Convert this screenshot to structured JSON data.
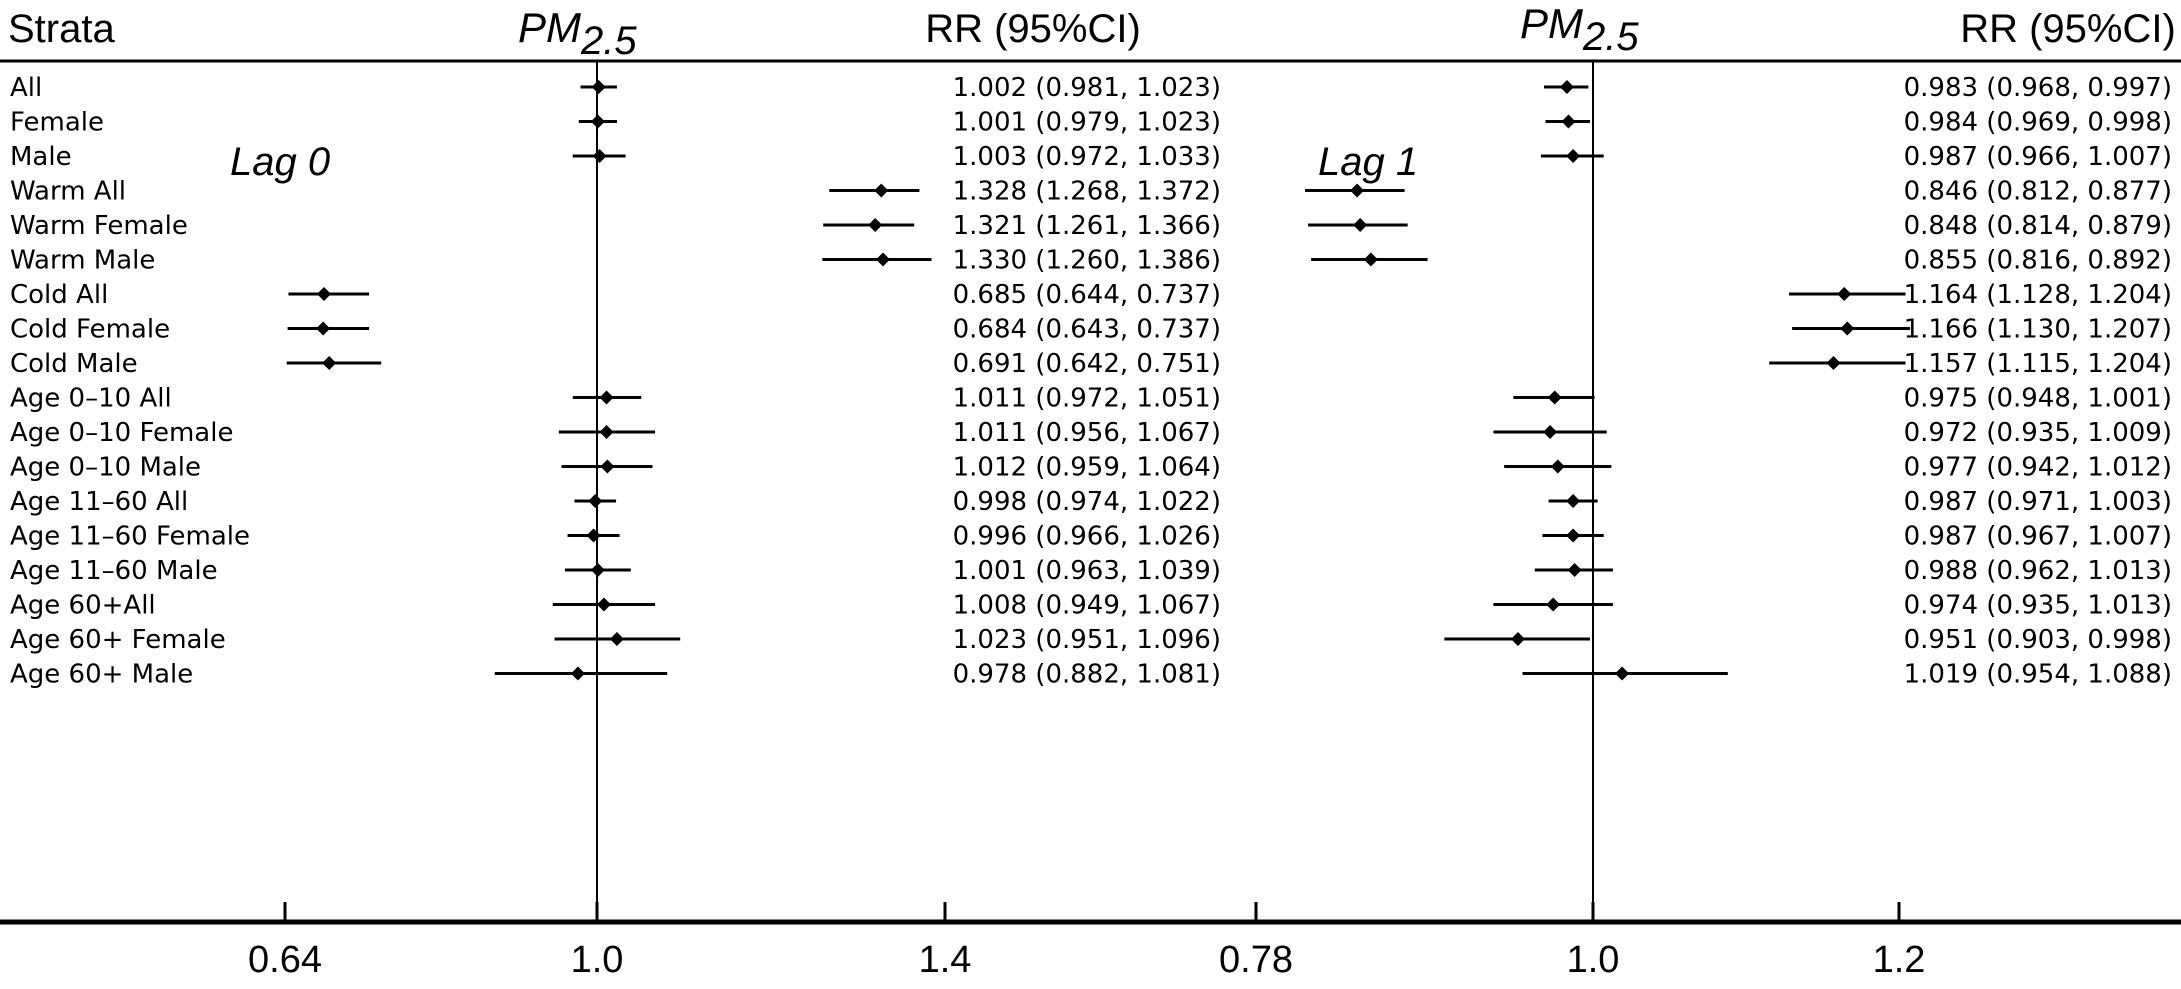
{
  "headers": {
    "strata": "Strata",
    "pm_base": "PM",
    "pm_sub": "2.5",
    "rr": "RR (95%CI)"
  },
  "strata": [
    "All",
    "Female",
    "Male",
    "Warm All",
    "Warm Female",
    "Warm Male",
    "Cold All",
    "Cold Female",
    "Cold Male",
    "Age 0–10 All",
    "Age 0–10 Female",
    "Age 0–10 Male",
    "Age 11–60 All",
    "Age 11–60 Female",
    "Age 11–60 Male",
    "Age 60+All",
    "Age 60+ Female",
    "Age 60+ Male"
  ],
  "chart_data": [
    {
      "type": "forest",
      "panel_label": "Lag 0",
      "x_ticks": [
        "0.64",
        "1.0",
        "1.4"
      ],
      "xlim": [
        0.6,
        1.48
      ],
      "reference_line": 1.0,
      "rows": [
        {
          "rr": 1.002,
          "lo": 0.981,
          "hi": 1.023,
          "text": "1.002 (0.981, 1.023)"
        },
        {
          "rr": 1.001,
          "lo": 0.979,
          "hi": 1.023,
          "text": "1.001 (0.979, 1.023)"
        },
        {
          "rr": 1.003,
          "lo": 0.972,
          "hi": 1.033,
          "text": "1.003 (0.972, 1.033)"
        },
        {
          "rr": 1.328,
          "lo": 1.268,
          "hi": 1.372,
          "text": "1.328 (1.268, 1.372)"
        },
        {
          "rr": 1.321,
          "lo": 1.261,
          "hi": 1.366,
          "text": "1.321 (1.261, 1.366)"
        },
        {
          "rr": 1.33,
          "lo": 1.26,
          "hi": 1.386,
          "text": "1.330 (1.260, 1.386)"
        },
        {
          "rr": 0.685,
          "lo": 0.644,
          "hi": 0.737,
          "text": "0.685 (0.644, 0.737)"
        },
        {
          "rr": 0.684,
          "lo": 0.643,
          "hi": 0.737,
          "text": "0.684 (0.643, 0.737)"
        },
        {
          "rr": 0.691,
          "lo": 0.642,
          "hi": 0.751,
          "text": "0.691 (0.642, 0.751)"
        },
        {
          "rr": 1.011,
          "lo": 0.972,
          "hi": 1.051,
          "text": "1.011 (0.972, 1.051)"
        },
        {
          "rr": 1.011,
          "lo": 0.956,
          "hi": 1.067,
          "text": "1.011 (0.956, 1.067)"
        },
        {
          "rr": 1.012,
          "lo": 0.959,
          "hi": 1.064,
          "text": "1.012 (0.959, 1.064)"
        },
        {
          "rr": 0.998,
          "lo": 0.974,
          "hi": 1.022,
          "text": "0.998 (0.974, 1.022)"
        },
        {
          "rr": 0.996,
          "lo": 0.966,
          "hi": 1.026,
          "text": "0.996 (0.966, 1.026)"
        },
        {
          "rr": 1.001,
          "lo": 0.963,
          "hi": 1.039,
          "text": "1.001 (0.963, 1.039)"
        },
        {
          "rr": 1.008,
          "lo": 0.949,
          "hi": 1.067,
          "text": "1.008 (0.949, 1.067)"
        },
        {
          "rr": 1.023,
          "lo": 0.951,
          "hi": 1.096,
          "text": "1.023 (0.951, 1.096)"
        },
        {
          "rr": 0.978,
          "lo": 0.882,
          "hi": 1.081,
          "text": "0.978 (0.882, 1.081)"
        }
      ]
    },
    {
      "type": "forest",
      "panel_label": "Lag 1",
      "x_ticks": [
        "0.78",
        "1.0",
        "1.2"
      ],
      "xlim": [
        0.77,
        1.26
      ],
      "reference_line": 1.0,
      "rows": [
        {
          "rr": 0.983,
          "lo": 0.968,
          "hi": 0.997,
          "text": "0.983 (0.968, 0.997)"
        },
        {
          "rr": 0.984,
          "lo": 0.969,
          "hi": 0.998,
          "text": "0.984 (0.969, 0.998)"
        },
        {
          "rr": 0.987,
          "lo": 0.966,
          "hi": 1.007,
          "text": "0.987 (0.966, 1.007)"
        },
        {
          "rr": 0.846,
          "lo": 0.812,
          "hi": 0.877,
          "text": "0.846 (0.812, 0.877)"
        },
        {
          "rr": 0.848,
          "lo": 0.814,
          "hi": 0.879,
          "text": "0.848 (0.814, 0.879)"
        },
        {
          "rr": 0.855,
          "lo": 0.816,
          "hi": 0.892,
          "text": "0.855 (0.816, 0.892)"
        },
        {
          "rr": 1.164,
          "lo": 1.128,
          "hi": 1.204,
          "text": "1.164 (1.128, 1.204)"
        },
        {
          "rr": 1.166,
          "lo": 1.13,
          "hi": 1.207,
          "text": "1.166 (1.130, 1.207)"
        },
        {
          "rr": 1.157,
          "lo": 1.115,
          "hi": 1.204,
          "text": "1.157 (1.115, 1.204)"
        },
        {
          "rr": 0.975,
          "lo": 0.948,
          "hi": 1.001,
          "text": "0.975 (0.948, 1.001)"
        },
        {
          "rr": 0.972,
          "lo": 0.935,
          "hi": 1.009,
          "text": "0.972 (0.935, 1.009)"
        },
        {
          "rr": 0.977,
          "lo": 0.942,
          "hi": 1.012,
          "text": "0.977 (0.942, 1.012)"
        },
        {
          "rr": 0.987,
          "lo": 0.971,
          "hi": 1.003,
          "text": "0.987 (0.971, 1.003)"
        },
        {
          "rr": 0.987,
          "lo": 0.967,
          "hi": 1.007,
          "text": "0.987 (0.967, 1.007)"
        },
        {
          "rr": 0.988,
          "lo": 0.962,
          "hi": 1.013,
          "text": "0.988 (0.962, 1.013)"
        },
        {
          "rr": 0.974,
          "lo": 0.935,
          "hi": 1.013,
          "text": "0.974 (0.935, 1.013)"
        },
        {
          "rr": 0.951,
          "lo": 0.903,
          "hi": 0.998,
          "text": "0.951 (0.903, 0.998)"
        },
        {
          "rr": 1.019,
          "lo": 0.954,
          "hi": 1.088,
          "text": "1.019 (0.954, 1.088)"
        }
      ]
    }
  ],
  "colors": {
    "ink": "#000000",
    "background": "#ffffff"
  }
}
